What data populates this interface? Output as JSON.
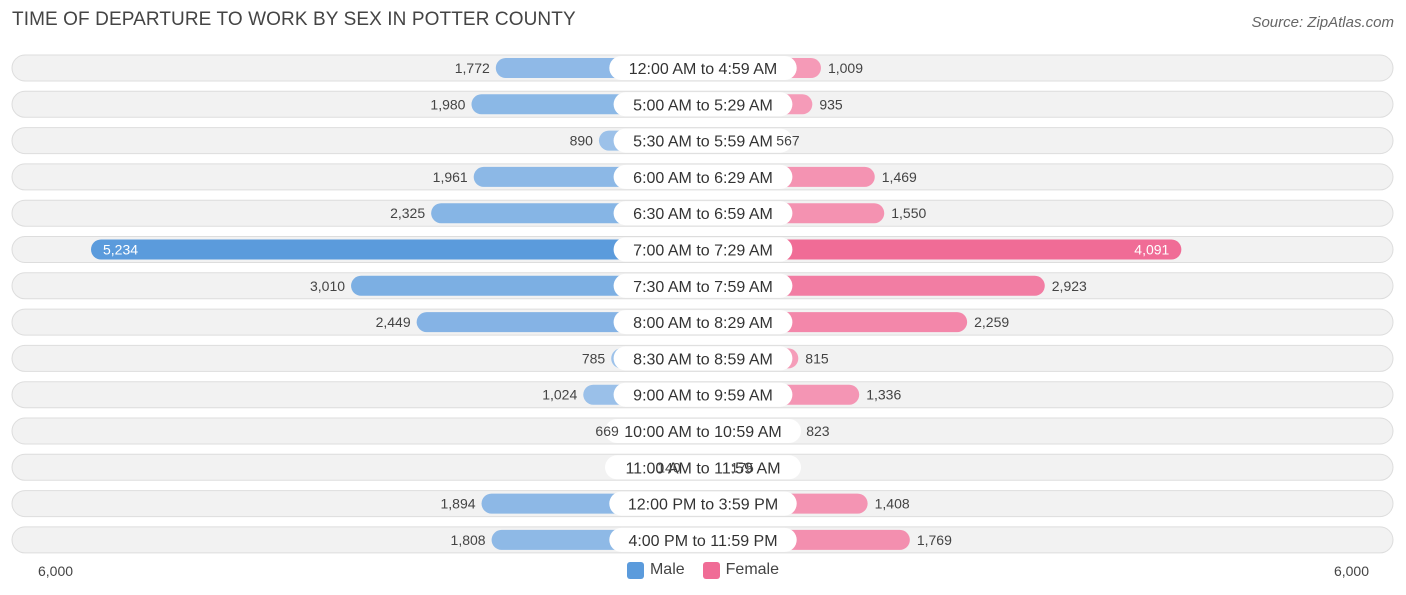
{
  "title": "TIME OF DEPARTURE TO WORK BY SEX IN POTTER COUNTY",
  "source": "Source: ZipAtlas.com",
  "legend": {
    "male_label": "Male",
    "female_label": "Female"
  },
  "axis": {
    "left_label": "6,000",
    "right_label": "6,000"
  },
  "colors": {
    "male_strong": "#5b9bdc",
    "male_light": "#a9c9ec",
    "female_strong": "#f06c96",
    "female_light": "#f6a9c2",
    "row_bg": "#f2f2f2",
    "row_border": "#dddddd"
  },
  "chart_data": {
    "type": "bar",
    "orientation": "horizontal-diverging",
    "title": "TIME OF DEPARTURE TO WORK BY SEX IN POTTER COUNTY",
    "xlim": [
      -6000,
      6000
    ],
    "categories": [
      "12:00 AM to 4:59 AM",
      "5:00 AM to 5:29 AM",
      "5:30 AM to 5:59 AM",
      "6:00 AM to 6:29 AM",
      "6:30 AM to 6:59 AM",
      "7:00 AM to 7:29 AM",
      "7:30 AM to 7:59 AM",
      "8:00 AM to 8:29 AM",
      "8:30 AM to 8:59 AM",
      "9:00 AM to 9:59 AM",
      "10:00 AM to 10:59 AM",
      "11:00 AM to 11:59 AM",
      "12:00 PM to 3:59 PM",
      "4:00 PM to 11:59 PM"
    ],
    "series": [
      {
        "name": "Male",
        "values": [
          1772,
          1980,
          890,
          1961,
          2325,
          5234,
          3010,
          2449,
          785,
          1024,
          669,
          140,
          1894,
          1808
        ],
        "labels": [
          "1,772",
          "1,980",
          "890",
          "1,961",
          "2,325",
          "5,234",
          "3,010",
          "2,449",
          "785",
          "1,024",
          "669",
          "140",
          "1,894",
          "1,808"
        ]
      },
      {
        "name": "Female",
        "values": [
          1009,
          935,
          567,
          1469,
          1550,
          4091,
          2923,
          2259,
          815,
          1336,
          823,
          175,
          1408,
          1769
        ],
        "labels": [
          "1,009",
          "935",
          "567",
          "1,469",
          "1,550",
          "4,091",
          "2,923",
          "2,259",
          "815",
          "1,336",
          "823",
          "175",
          "1,408",
          "1,769"
        ]
      }
    ],
    "legend_position": "bottom-center",
    "grid": false
  }
}
